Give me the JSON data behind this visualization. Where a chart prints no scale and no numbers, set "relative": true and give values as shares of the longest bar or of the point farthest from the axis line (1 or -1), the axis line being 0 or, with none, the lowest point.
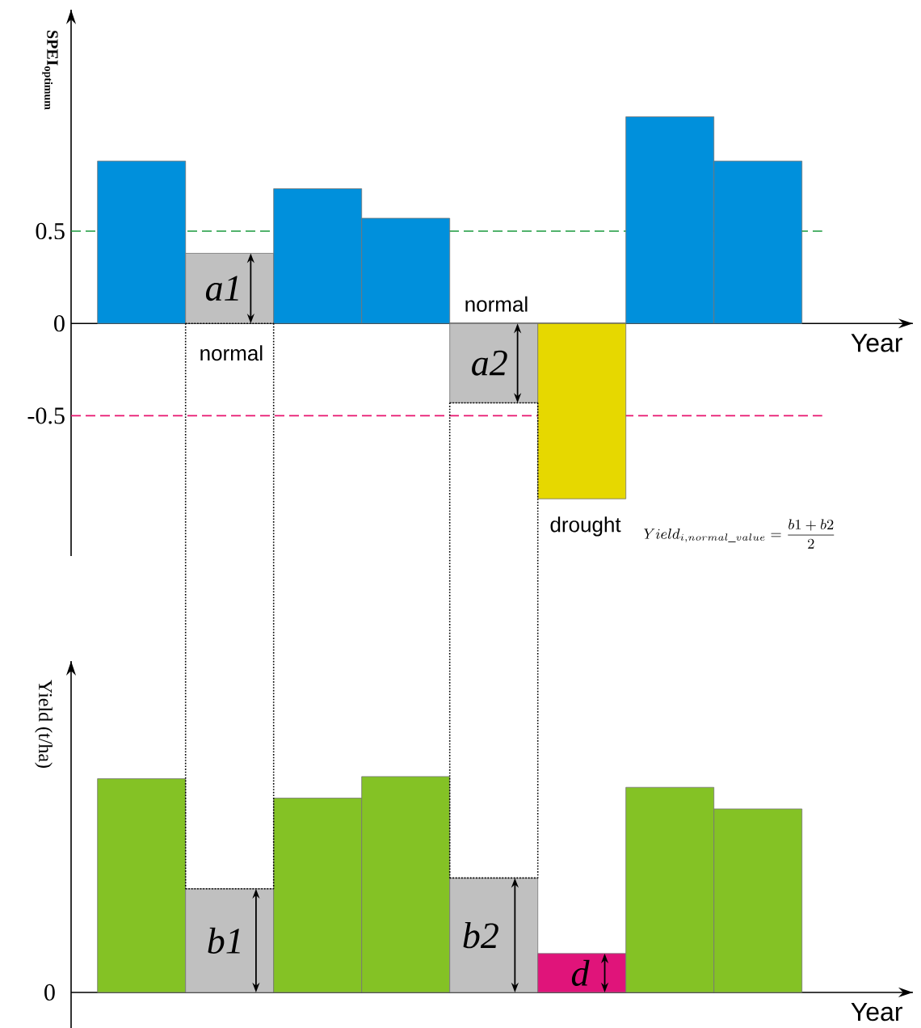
{
  "chart_data": [
    {
      "type": "bar",
      "ylabel": "**SPEI$_{optimum}$**",
      "xlabel": "Year",
      "categories": [
        null,
        null,
        null,
        null,
        null,
        null,
        null,
        null
      ],
      "values": [
        0.88,
        0.38,
        0.73,
        0.57,
        -0.43,
        -0.95,
        1.12,
        0.88
      ],
      "colors": [
        "#0090dc",
        "#c0c0c0",
        "#0090dc",
        "#0090dc",
        "#c0c0c0",
        "#e6d800",
        "#0090dc",
        "#0090dc"
      ],
      "ylim": [
        -1.26,
        1.7
      ],
      "yticks": [
        -0.5,
        0,
        0.5
      ],
      "ref_lines": [
        {
          "axis": "y",
          "value": 0.5,
          "color": "#1a9a3c",
          "line_style": "dashed"
        },
        {
          "axis": "y",
          "value": -0.5,
          "color": "#e8146e",
          "line_style": "dashed"
        }
      ],
      "annotations": [
        "a1",
        "a2",
        "normal",
        "normal",
        "drought",
        "Yield_{i,normal\\_value}=\\frac{b1+b2}{2}"
      ]
    },
    {
      "type": "bar",
      "ylabel": "Yield (t/ha)",
      "xlabel": "Year",
      "relative": true,
      "categories": [
        null,
        null,
        null,
        null,
        null,
        null,
        null,
        null
      ],
      "values": [
        0.99,
        0.48,
        0.9,
        1,
        0.53,
        0.18,
        0.95,
        0.85
      ],
      "colors": [
        "#84c225",
        "#c0c0c0",
        "#84c225",
        "#84c225",
        "#c0c0c0",
        "#e0147a",
        "#84c225",
        "#84c225"
      ],
      "annotations": [
        "b1",
        "b2",
        "d",
        "0"
      ]
    }
  ]
}
